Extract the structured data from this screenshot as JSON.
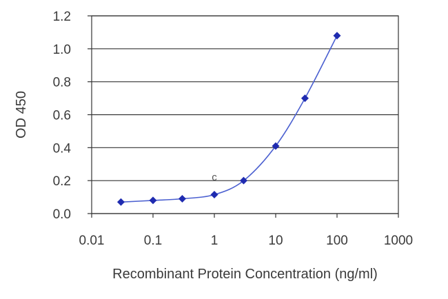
{
  "chart_data": {
    "type": "line",
    "xscale": "log",
    "xlabel": "Recombinant Protein Concentration (ng/ml)",
    "ylabel": "OD 450",
    "xlim": [
      0.01,
      1000
    ],
    "ylim": [
      0,
      1.2
    ],
    "x_ticks": [
      "0.01",
      "0.1",
      "1",
      "10",
      "100",
      "1000"
    ],
    "y_ticks": [
      "0.0",
      "0.2",
      "0.4",
      "0.6",
      "0.8",
      "1.0",
      "1.2"
    ],
    "grid": "horizontal",
    "annotation": "c",
    "colors": {
      "line": "#4a5fd0",
      "marker": "#1f2bb0",
      "grid": "#333333"
    },
    "series": [
      {
        "x": [
          0.03,
          0.1,
          0.3,
          1,
          3,
          10,
          30,
          100
        ],
        "y": [
          0.07,
          0.08,
          0.09,
          0.115,
          0.2,
          0.41,
          0.7,
          1.08
        ]
      }
    ]
  }
}
